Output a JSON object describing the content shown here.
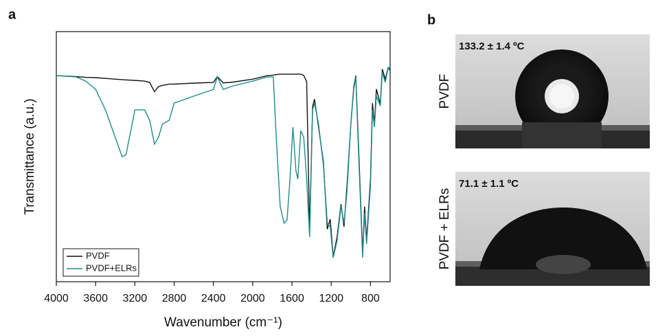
{
  "chart_data": {
    "type": "line",
    "panel_label": "a",
    "x_label": "Wavenumber (cm⁻¹)",
    "y_label": "Transmittance (a.u.)",
    "xlim": [
      4000,
      600
    ],
    "ylim": [
      0,
      100
    ],
    "xticks": [
      4000,
      3600,
      3200,
      2800,
      2400,
      2000,
      1600,
      1200,
      800
    ],
    "legend": "lower left",
    "x": [
      4000,
      3800,
      3700,
      3600,
      3500,
      3400,
      3330,
      3290,
      3200,
      3100,
      3050,
      3000,
      2960,
      2920,
      2850,
      2800,
      2700,
      2600,
      2400,
      2360,
      2300,
      2200,
      2000,
      1850,
      1790,
      1760,
      1720,
      1680,
      1650,
      1620,
      1590,
      1560,
      1540,
      1510,
      1480,
      1450,
      1420,
      1390,
      1370,
      1330,
      1280,
      1240,
      1210,
      1180,
      1140,
      1100,
      1070,
      1040,
      1000,
      970,
      950,
      920,
      880,
      860,
      840,
      800,
      780,
      760,
      740,
      700,
      680,
      650,
      620,
      600
    ],
    "series": [
      {
        "name": "PVDF",
        "color": "#111111",
        "values": [
          82.4,
          82,
          81.7,
          81.6,
          81.3,
          81,
          80.8,
          80.7,
          80.5,
          80.2,
          79.7,
          76,
          78,
          78.5,
          79,
          79,
          79.2,
          79.4,
          79.7,
          82,
          79.5,
          79.8,
          81,
          82.4,
          82.6,
          82.8,
          83,
          83,
          83,
          83,
          83,
          83,
          83,
          83,
          82.5,
          80,
          20,
          70,
          73,
          62,
          48,
          21,
          25,
          10,
          18,
          31,
          22,
          38,
          63,
          78,
          82.4,
          52,
          11,
          30,
          16.5,
          41,
          71.4,
          63,
          77,
          71,
          85,
          81,
          85.7,
          85
        ]
      },
      {
        "name": "PVDF+ELRs",
        "color": "#1f8a8a",
        "values": [
          82.4,
          81.9,
          80.2,
          76.9,
          68.7,
          57.7,
          50,
          50.8,
          68.7,
          68.7,
          64.6,
          55,
          57.7,
          63,
          64.6,
          71.4,
          72.8,
          74.2,
          76.9,
          81.9,
          76.9,
          78.3,
          80.2,
          81.9,
          81.9,
          57.7,
          30.2,
          23.4,
          24.7,
          41,
          61.8,
          44.5,
          41,
          60.4,
          57.7,
          41,
          17.9,
          68.7,
          71.4,
          63.2,
          46.7,
          23.4,
          22,
          9.6,
          16.5,
          30.2,
          23.4,
          35.7,
          63.2,
          77,
          81.9,
          49.5,
          9.6,
          27.5,
          15.1,
          38.5,
          68.7,
          61.8,
          74.2,
          70.3,
          83.8,
          79.7,
          85.7,
          84
        ]
      }
    ]
  },
  "panel_b": {
    "panel_label": "b",
    "images": [
      {
        "label": "PVDF",
        "angle": "133.2 ± 1.4 ºC"
      },
      {
        "label": "PVDF + ELRs",
        "angle": "71.1 ± 1.1 ºC"
      }
    ]
  }
}
